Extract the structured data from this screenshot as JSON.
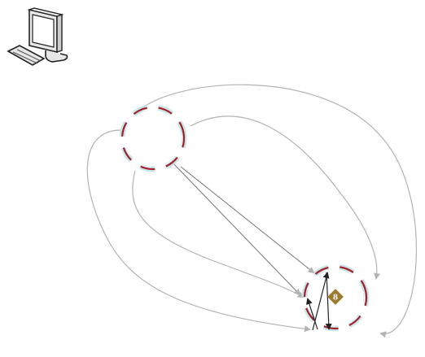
{
  "diagram": {
    "icon": {
      "name": "desktop-computer-icon"
    },
    "nodes": [
      {
        "id": "node-a",
        "style": "dashed-ring"
      },
      {
        "id": "node-b",
        "style": "dashed-ring"
      }
    ],
    "badge": {
      "label": "8",
      "color": "#9c7a2e"
    },
    "colors": {
      "ring_red": "#a3202a",
      "ring_glow": "#bfe3e6",
      "connector_gray": "#b3b3b3",
      "connector_dark": "#222222"
    }
  }
}
